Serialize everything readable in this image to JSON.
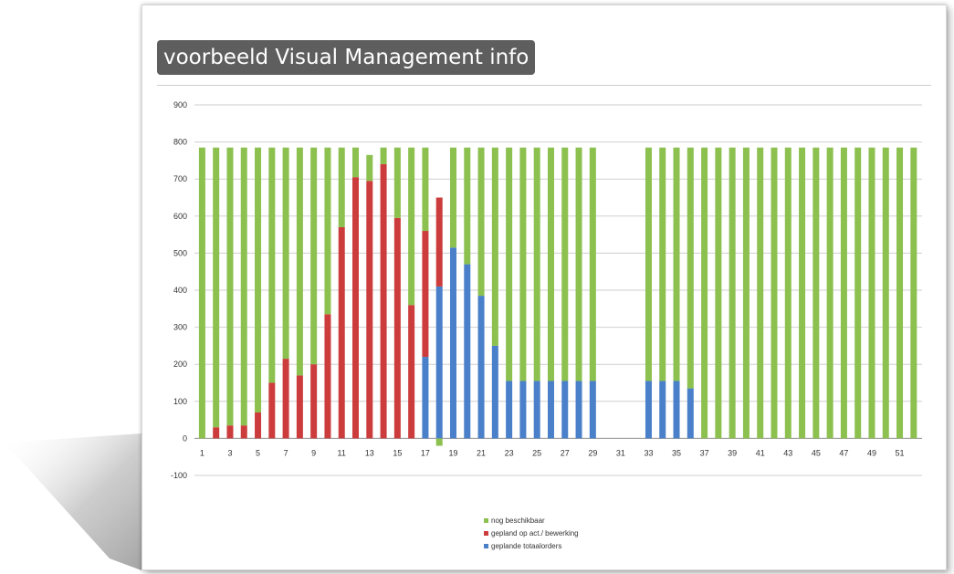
{
  "slide": {
    "title": "voorbeeld Visual Management info"
  },
  "colors": {
    "nog_beschikbaar": "#8cc04f",
    "gepland_op_act": "#cc3c3c",
    "geplande_totaalorders": "#4a7fc9",
    "gridline": "#cfcfcf",
    "title_bg": "#5e5e5e"
  },
  "chart_data": {
    "type": "bar",
    "stacked": true,
    "x": [
      1,
      2,
      3,
      4,
      5,
      6,
      7,
      8,
      9,
      10,
      11,
      12,
      13,
      14,
      15,
      16,
      17,
      18,
      19,
      20,
      21,
      22,
      23,
      24,
      25,
      26,
      27,
      28,
      29,
      30,
      31,
      32,
      33,
      34,
      35,
      36,
      37,
      38,
      39,
      40,
      41,
      42,
      43,
      44,
      45,
      46,
      47,
      48,
      49,
      50,
      51,
      52
    ],
    "x_tick_labels": [
      "1",
      "3",
      "5",
      "7",
      "9",
      "11",
      "13",
      "15",
      "17",
      "19",
      "21",
      "23",
      "25",
      "27",
      "29",
      "31",
      "33",
      "35",
      "37",
      "39",
      "41",
      "43",
      "45",
      "47",
      "49",
      "51"
    ],
    "y_tick_labels": [
      "900",
      "800",
      "700",
      "600",
      "500",
      "400",
      "300",
      "200",
      "100",
      "0",
      "-100"
    ],
    "ylim": [
      -100,
      900
    ],
    "grid": true,
    "legend_position": "bottom",
    "series": [
      {
        "name": "geplande totaalorders",
        "color": "#4a7fc9",
        "values": [
          0,
          0,
          0,
          0,
          0,
          0,
          0,
          0,
          0,
          0,
          0,
          0,
          0,
          0,
          0,
          0,
          220,
          410,
          515,
          470,
          385,
          250,
          155,
          155,
          155,
          155,
          155,
          155,
          155,
          0,
          0,
          0,
          155,
          155,
          155,
          135,
          0,
          0,
          0,
          0,
          0,
          0,
          0,
          0,
          0,
          0,
          0,
          0,
          0,
          0,
          0,
          0
        ]
      },
      {
        "name": "gepland op act./ bewerking",
        "color": "#cc3c3c",
        "values": [
          0,
          30,
          35,
          35,
          70,
          150,
          215,
          170,
          200,
          335,
          570,
          705,
          695,
          740,
          595,
          360,
          340,
          240,
          0,
          0,
          0,
          0,
          0,
          0,
          0,
          0,
          0,
          0,
          0,
          0,
          0,
          0,
          0,
          0,
          0,
          0,
          0,
          0,
          0,
          0,
          0,
          0,
          0,
          0,
          0,
          0,
          0,
          0,
          0,
          0,
          0,
          0
        ]
      },
      {
        "name": "nog beschikbaar",
        "color": "#8cc04f",
        "values": [
          785,
          755,
          750,
          750,
          715,
          635,
          570,
          615,
          585,
          450,
          215,
          80,
          70,
          45,
          190,
          425,
          225,
          -20,
          270,
          315,
          400,
          535,
          630,
          630,
          630,
          630,
          630,
          630,
          630,
          0,
          0,
          0,
          630,
          630,
          630,
          650,
          785,
          785,
          785,
          785,
          785,
          785,
          785,
          785,
          785,
          785,
          785,
          785,
          785,
          785,
          785,
          785
        ]
      }
    ],
    "legend": [
      "nog beschikbaar",
      "gepland op act./ bewerking",
      "geplande totaalorders"
    ]
  }
}
